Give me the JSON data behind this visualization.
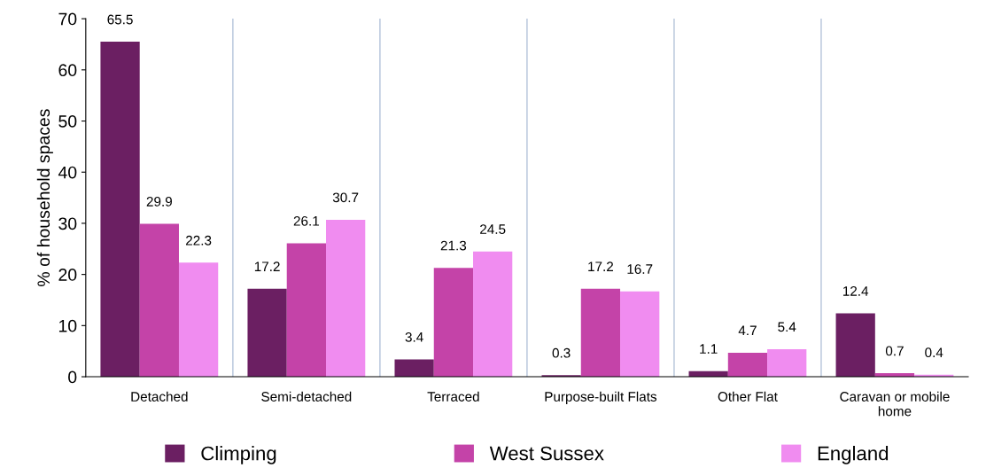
{
  "chart_data": {
    "type": "bar",
    "ylabel": "% of household spaces",
    "categories": [
      "Detached",
      "Semi-detached",
      "Terraced",
      "Purpose-built Flats",
      "Other Flat",
      "Caravan or mobile\nhome"
    ],
    "series": [
      {
        "name": "Climping",
        "color": "#6b1f62",
        "values": [
          65.5,
          17.2,
          3.4,
          0.3,
          1.1,
          12.4
        ]
      },
      {
        "name": "West Sussex",
        "color": "#c443a8",
        "values": [
          29.9,
          26.1,
          21.3,
          17.2,
          4.7,
          0.7
        ]
      },
      {
        "name": "England",
        "color": "#f08cf0",
        "values": [
          22.3,
          30.7,
          24.5,
          16.7,
          5.4,
          0.4
        ]
      }
    ],
    "ylim": [
      0,
      70
    ],
    "yticks": [
      0,
      10,
      20,
      30,
      40,
      50,
      60,
      70
    ],
    "grid": "x",
    "legend": "bottom",
    "data_labels": true
  }
}
